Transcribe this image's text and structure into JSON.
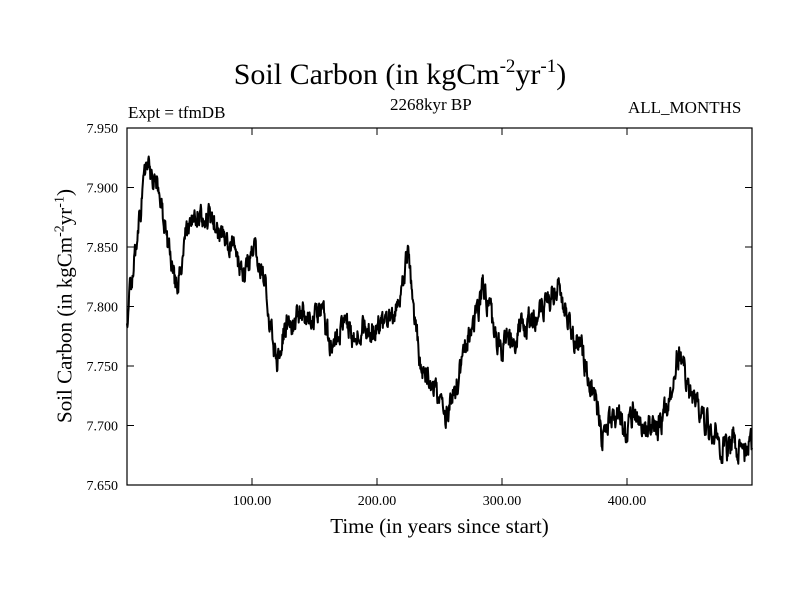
{
  "chart_data": {
    "type": "line",
    "title": {
      "main": "Soil Carbon (in kgCm",
      "sup1": "-2",
      "mid": "yr",
      "sup2": "-1",
      "end": ")"
    },
    "subtitle_left": "Expt = tfmDB",
    "subtitle_center": "2268kyr BP",
    "subtitle_right": "ALL_MONTHS",
    "xlabel": "Time (in years since start)",
    "ylabel": {
      "main": "Soil Carbon (in kgCm",
      "sup1": "-2",
      "mid": "yr",
      "sup2": "-1",
      "end": ")"
    },
    "xlim": [
      0,
      500
    ],
    "ylim": [
      7.65,
      7.95
    ],
    "x_ticks": [
      100,
      200,
      300,
      400
    ],
    "x_tick_labels": [
      "100.00",
      "200.00",
      "300.00",
      "400.00"
    ],
    "y_ticks": [
      7.65,
      7.7,
      7.75,
      7.8,
      7.85,
      7.9,
      7.95
    ],
    "y_tick_labels": [
      "7.650",
      "7.700",
      "7.750",
      "7.800",
      "7.850",
      "7.900",
      "7.950"
    ],
    "grid": false,
    "series": [
      {
        "name": "Soil Carbon",
        "color": "#000000",
        "x": [
          0,
          5,
          10,
          15,
          20,
          25,
          30,
          35,
          40,
          45,
          50,
          55,
          60,
          65,
          70,
          75,
          80,
          85,
          90,
          95,
          100,
          105,
          110,
          115,
          120,
          125,
          130,
          135,
          140,
          145,
          150,
          155,
          160,
          165,
          170,
          175,
          180,
          185,
          190,
          195,
          200,
          205,
          210,
          215,
          220,
          225,
          230,
          235,
          240,
          245,
          250,
          255,
          260,
          265,
          270,
          275,
          280,
          285,
          290,
          295,
          300,
          305,
          310,
          315,
          320,
          325,
          330,
          335,
          340,
          345,
          350,
          355,
          360,
          365,
          370,
          375,
          380,
          385,
          390,
          395,
          400,
          405,
          410,
          415,
          420,
          425,
          430,
          435,
          440,
          445,
          450,
          455,
          460,
          465,
          470,
          475,
          480,
          485,
          490,
          495,
          500
        ],
        "values": [
          7.79,
          7.83,
          7.87,
          7.915,
          7.91,
          7.9,
          7.87,
          7.84,
          7.81,
          7.85,
          7.87,
          7.88,
          7.875,
          7.88,
          7.87,
          7.86,
          7.85,
          7.855,
          7.835,
          7.83,
          7.845,
          7.84,
          7.82,
          7.78,
          7.755,
          7.775,
          7.785,
          7.79,
          7.8,
          7.785,
          7.79,
          7.8,
          7.775,
          7.765,
          7.78,
          7.79,
          7.775,
          7.785,
          7.78,
          7.775,
          7.785,
          7.78,
          7.79,
          7.8,
          7.82,
          7.845,
          7.79,
          7.75,
          7.745,
          7.73,
          7.72,
          7.705,
          7.72,
          7.74,
          7.76,
          7.78,
          7.79,
          7.82,
          7.8,
          7.77,
          7.765,
          7.775,
          7.77,
          7.78,
          7.785,
          7.79,
          7.8,
          7.805,
          7.81,
          7.815,
          7.8,
          7.78,
          7.77,
          7.76,
          7.74,
          7.72,
          7.69,
          7.705,
          7.7,
          7.71,
          7.69,
          7.71,
          7.705,
          7.695,
          7.7,
          7.7,
          7.71,
          7.72,
          7.76,
          7.75,
          7.73,
          7.72,
          7.71,
          7.7,
          7.695,
          7.685,
          7.68,
          7.69,
          7.68,
          7.675,
          7.69
        ]
      }
    ]
  }
}
